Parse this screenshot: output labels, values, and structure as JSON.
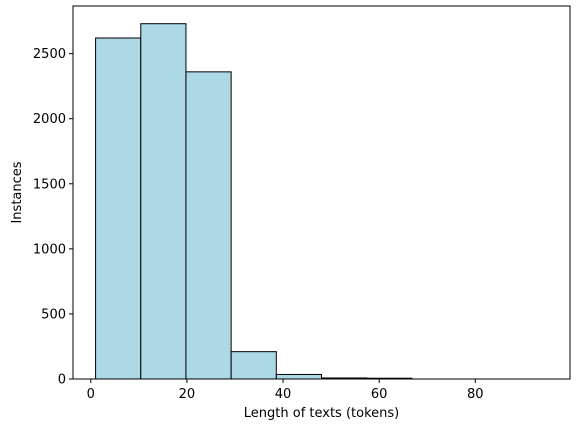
{
  "chart_data": {
    "type": "bar",
    "title": "",
    "xlabel": "Length of texts (tokens)",
    "ylabel": "Instances",
    "bin_edges": [
      1,
      10.4,
      19.8,
      29.2,
      38.6,
      48.0,
      57.4,
      66.8,
      76.2,
      85.6,
      95
    ],
    "values": [
      2620,
      2730,
      2360,
      210,
      35,
      8,
      6,
      0,
      0,
      0
    ],
    "xlim": [
      -3.7,
      99.7
    ],
    "ylim": [
      0,
      2866
    ],
    "xticks": [
      0,
      20,
      40,
      60,
      80
    ],
    "yticks": [
      0,
      500,
      1000,
      1500,
      2000,
      2500
    ],
    "grid": false,
    "colors": {
      "bar_fill": "#add8e6",
      "bar_edge": "#000000"
    }
  }
}
